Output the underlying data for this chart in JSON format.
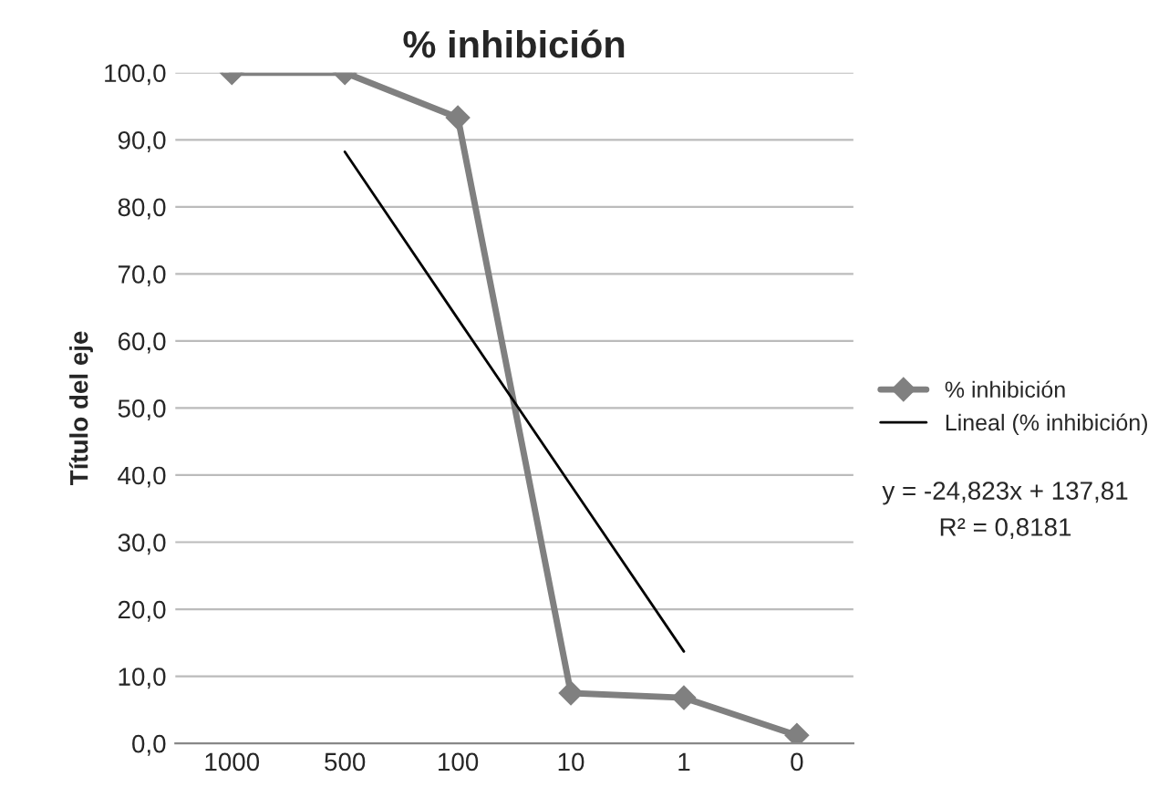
{
  "chart_data": {
    "type": "line",
    "title": "% inhibición",
    "ylabel": "Título del eje",
    "categories": [
      "1000",
      "500",
      "100",
      "10",
      "1",
      "0"
    ],
    "series": [
      {
        "name": "% inhibición",
        "color": "#808080",
        "values": [
          100.0,
          100.0,
          93.3,
          7.5,
          6.8,
          1.2
        ],
        "marker": "diamond"
      },
      {
        "name": "Lineal (% inhibición)",
        "type": "line",
        "color": "#000000",
        "values": [
          null,
          88.2,
          63.3,
          38.5,
          13.7,
          null
        ],
        "marker": "none"
      }
    ],
    "ylim": [
      0,
      100
    ],
    "yticks": [
      {
        "value": 0,
        "label": "0,0"
      },
      {
        "value": 10,
        "label": "10,0"
      },
      {
        "value": 20,
        "label": "20,0"
      },
      {
        "value": 30,
        "label": "30,0"
      },
      {
        "value": 40,
        "label": "40,0"
      },
      {
        "value": 50,
        "label": "50,0"
      },
      {
        "value": 60,
        "label": "60,0"
      },
      {
        "value": 70,
        "label": "70,0"
      },
      {
        "value": 80,
        "label": "80,0"
      },
      {
        "value": 90,
        "label": "90,0"
      },
      {
        "value": 100,
        "label": "100,0"
      }
    ],
    "grid": "y",
    "legend": "right",
    "annotations": [
      "y = -24,823x + 137,81",
      "R² = 0,8181"
    ]
  }
}
